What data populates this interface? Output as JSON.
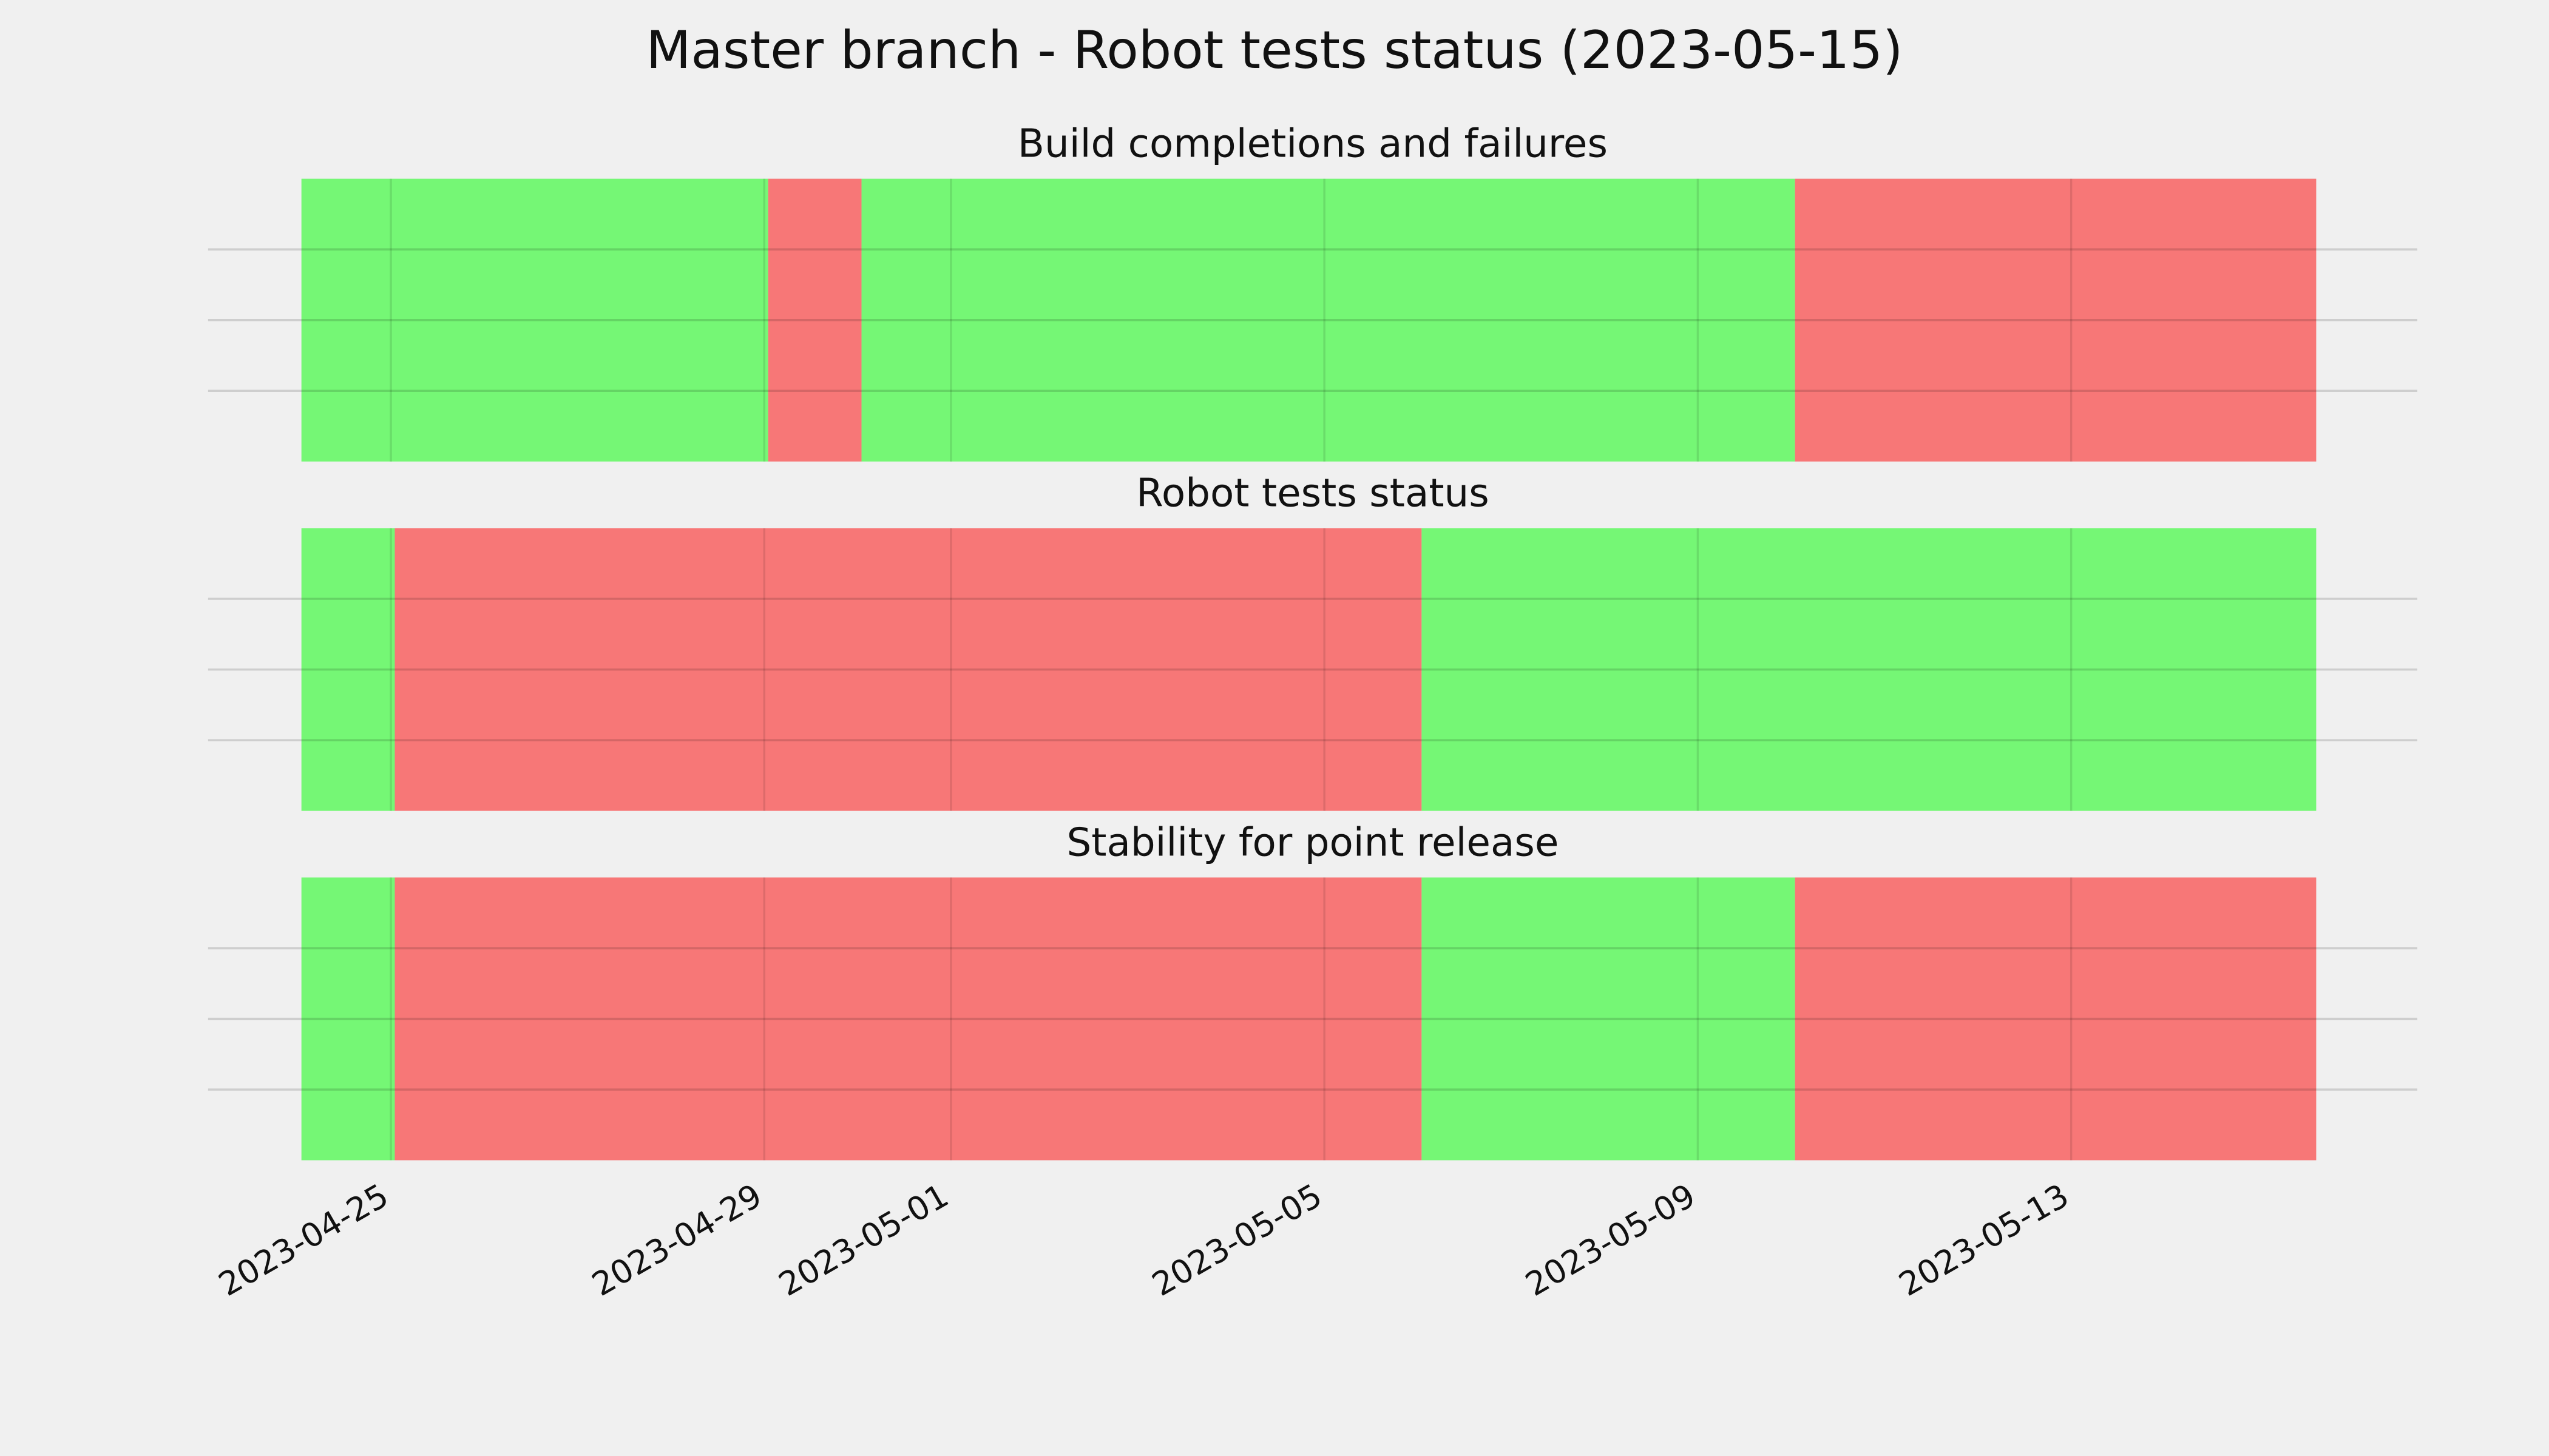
{
  "title": "Master branch - Robot tests status (2023-05-15)",
  "chart_data": [
    {
      "type": "timeline",
      "title": "Build completions and failures",
      "segments": [
        {
          "start": "2023-04-24T01:00",
          "end": "2023-04-29T01:00",
          "color": "#75f775"
        },
        {
          "start": "2023-04-29T01:00",
          "end": "2023-04-30T01:00",
          "color": "#f77777"
        },
        {
          "start": "2023-04-30T01:00",
          "end": "2023-05-10T01:00",
          "color": "#75f775"
        },
        {
          "start": "2023-05-10T01:00",
          "end": "2023-05-15T15:00",
          "color": "#f77777"
        }
      ],
      "xlim": [
        "2023-04-23T01:00",
        "2023-05-16T17:00"
      ],
      "xticks": [
        "2023-04-25",
        "2023-04-29",
        "2023-05-01",
        "2023-05-05",
        "2023-05-09",
        "2023-05-13"
      ],
      "ylim": [
        0,
        1
      ],
      "yticks": [
        0.25,
        0.5,
        0.75
      ],
      "grid": true
    },
    {
      "type": "timeline",
      "title": "Robot tests status",
      "segments": [
        {
          "start": "2023-04-24T01:00",
          "end": "2023-04-25T01:00",
          "color": "#75f775"
        },
        {
          "start": "2023-04-25T01:00",
          "end": "2023-05-06T01:00",
          "color": "#f77777"
        },
        {
          "start": "2023-05-06T01:00",
          "end": "2023-05-15T15:00",
          "color": "#75f775"
        }
      ],
      "xlim": [
        "2023-04-23T01:00",
        "2023-05-16T17:00"
      ],
      "xticks": [
        "2023-04-25",
        "2023-04-29",
        "2023-05-01",
        "2023-05-05",
        "2023-05-09",
        "2023-05-13"
      ],
      "ylim": [
        0,
        1
      ],
      "yticks": [
        0.25,
        0.5,
        0.75
      ],
      "grid": true
    },
    {
      "type": "timeline",
      "title": "Stability for point release",
      "segments": [
        {
          "start": "2023-04-24T01:00",
          "end": "2023-04-25T01:00",
          "color": "#75f775"
        },
        {
          "start": "2023-04-25T01:00",
          "end": "2023-05-06T01:00",
          "color": "#f77777"
        },
        {
          "start": "2023-05-06T01:00",
          "end": "2023-05-10T01:00",
          "color": "#75f775"
        },
        {
          "start": "2023-05-10T01:00",
          "end": "2023-05-15T15:00",
          "color": "#f77777"
        }
      ],
      "xlim": [
        "2023-04-23T01:00",
        "2023-05-16T17:00"
      ],
      "xticks": [
        "2023-04-25",
        "2023-04-29",
        "2023-05-01",
        "2023-05-05",
        "2023-05-09",
        "2023-05-13"
      ],
      "ylim": [
        0,
        1
      ],
      "yticks": [
        0.25,
        0.5,
        0.75
      ],
      "grid": true
    }
  ]
}
